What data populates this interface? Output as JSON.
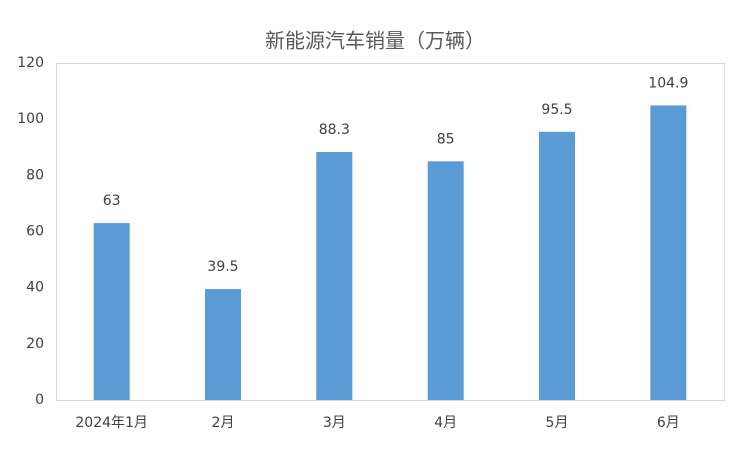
{
  "chart_data": {
    "type": "bar",
    "title": "新能源汽车销量（万辆）",
    "categories": [
      "2024年1月",
      "2月",
      "3月",
      "4月",
      "5月",
      "6月"
    ],
    "values": [
      63,
      39.5,
      88.3,
      85,
      95.5,
      104.9
    ],
    "color": "#5b9bd5",
    "ylim": [
      0,
      120
    ],
    "yticks": [
      0,
      20,
      40,
      60,
      80,
      100,
      120
    ],
    "grid": false
  }
}
